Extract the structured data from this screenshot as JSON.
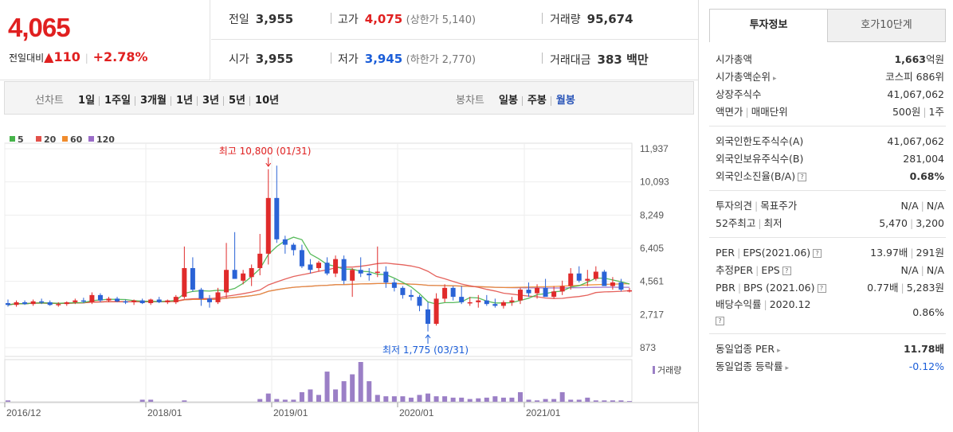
{
  "price": {
    "current": "4,065",
    "change_label": "전일대비",
    "change_arrow": "▲",
    "change_value": "110",
    "change_pct": "+2.78%"
  },
  "summary": {
    "prev_close_label": "전일",
    "prev_close": "3,955",
    "high_label": "고가",
    "high": "4,075",
    "upper_limit": "(상한가 5,140)",
    "volume_label": "거래량",
    "volume": "95,674",
    "open_label": "시가",
    "open": "3,955",
    "low_label": "저가",
    "low": "3,945",
    "lower_limit": "(하한가 2,770)",
    "amount_label": "거래대금",
    "amount": "383 백만"
  },
  "controls": {
    "line_label": "선차트",
    "line_periods": [
      "1일",
      "1주일",
      "3개월",
      "1년",
      "3년",
      "5년",
      "10년"
    ],
    "candle_label": "봉차트",
    "candle_periods": [
      "일봉",
      "주봉",
      "월봉"
    ],
    "candle_selected": "월봉"
  },
  "chart_data": {
    "type": "candlestick",
    "legend": [
      {
        "name": "5",
        "color": "#46b44a"
      },
      {
        "name": "20",
        "color": "#e2514a"
      },
      {
        "name": "60",
        "color": "#f08c2d"
      },
      {
        "name": "120",
        "color": "#9a6cc8"
      }
    ],
    "y_ticks": [
      "11,937",
      "10,093",
      "8,249",
      "6,405",
      "4,561",
      "2,717",
      "873"
    ],
    "x_ticks": [
      "2016/12",
      "2018/01",
      "2019/01",
      "2020/01",
      "2021/01"
    ],
    "max_annotation": "최고 10,800 (01/31)",
    "min_annotation": "최저 1,775 (03/31)",
    "volume_legend": "거래량",
    "up_color": "#e02b2b",
    "down_color": "#2a63d6"
  },
  "tabs": {
    "active": "투자정보",
    "other": "호가10단계"
  },
  "info": {
    "market_cap_label": "시가총액",
    "market_cap": "1,663",
    "market_cap_unit": "억원",
    "market_cap_rank_label": "시가총액순위",
    "market_cap_rank": "코스피 686위",
    "listed_shares_label": "상장주식수",
    "listed_shares": "41,067,062",
    "par_label": "액면가",
    "unit_label": "매매단위",
    "par_value": "500원",
    "trade_unit": "1주",
    "foreign_limit_label": "외국인한도주식수(A)",
    "foreign_limit": "41,067,062",
    "foreign_hold_label": "외국인보유주식수(B)",
    "foreign_hold": "281,004",
    "foreign_ratio_label": "외국인소진율(B/A)",
    "foreign_ratio": "0.68%",
    "opinion_label": "투자의견",
    "target_label": "목표주가",
    "opinion": "N/A",
    "target": "N/A",
    "high52_label": "52주최고",
    "low52_label": "최저",
    "high52": "5,470",
    "low52": "3,200",
    "per_label": "PER",
    "eps_label": "EPS(2021.06)",
    "per": "13.97배",
    "eps": "291원",
    "est_per_label": "추정PER",
    "est_eps_label": "EPS",
    "est_per": "N/A",
    "est_eps": "N/A",
    "pbr_label": "PBR",
    "bps_label": "BPS (2021.06)",
    "pbr": "0.77배",
    "bps": "5,283원",
    "div_label": "배당수익률",
    "div_date": "2020.12",
    "div": "0.86%",
    "ind_per_label": "동일업종 PER",
    "ind_per": "11.78배",
    "ind_rate_label": "동일업종 등락률",
    "ind_rate": "-0.12%"
  }
}
